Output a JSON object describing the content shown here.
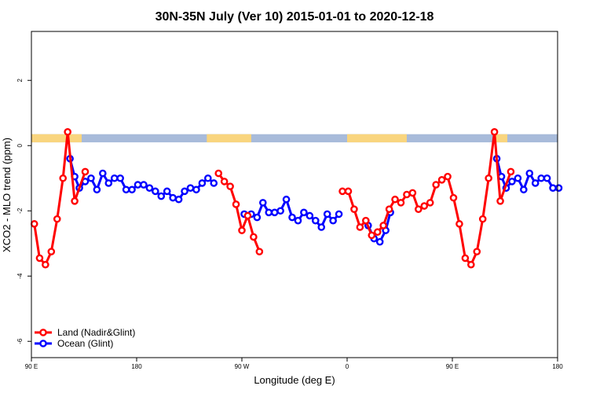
{
  "chart_data": {
    "type": "line",
    "title": "30N-35N July (Ver 10)   2015-01-01 to 2020-12-18",
    "xlabel": "Longitude (deg E)",
    "ylabel": "XCO2 - MLO trend (ppm)",
    "x_domain": [
      90,
      540
    ],
    "ylim": [
      -6.5,
      3.5
    ],
    "x_ticks": [
      {
        "value": 90,
        "label": "90 E"
      },
      {
        "value": 180,
        "label": "180"
      },
      {
        "value": 270,
        "label": "90 W"
      },
      {
        "value": 360,
        "label": "0"
      },
      {
        "value": 450,
        "label": "90 E"
      },
      {
        "value": 540,
        "label": "180"
      }
    ],
    "y_ticks": [
      {
        "value": -6,
        "label": "-6"
      },
      {
        "value": -4,
        "label": "-4"
      },
      {
        "value": -2,
        "label": "-2"
      },
      {
        "value": 0,
        "label": "0"
      },
      {
        "value": 2,
        "label": "2"
      }
    ],
    "land_ocean_band": {
      "y_range": [
        0.1,
        0.35
      ],
      "land_color": "#F9D57E",
      "ocean_color": "#A8BBDA",
      "land_segments": [
        [
          90,
          133
        ],
        [
          240,
          278
        ],
        [
          360,
          411
        ],
        [
          485,
          497
        ]
      ]
    },
    "legend": {
      "position": "bottom-left",
      "entries": [
        {
          "label": "Land (Nadir&Glint)",
          "color": "#FF0000"
        },
        {
          "label": "Ocean (Glint)",
          "color": "#0000FF"
        }
      ]
    },
    "series": [
      {
        "name": "Land (Nadir&Glint)",
        "color": "#FF0000",
        "segments": [
          [
            [
              92.5,
              -2.4
            ],
            [
              97,
              -3.45
            ],
            [
              102,
              -3.65
            ],
            [
              107,
              -3.25
            ],
            [
              112,
              -2.25
            ],
            [
              117,
              -1.0
            ],
            [
              121,
              0.42
            ],
            [
              127,
              -1.7
            ],
            [
              136,
              -0.8
            ]
          ],
          [
            [
              250,
              -0.85
            ],
            [
              255,
              -1.1
            ],
            [
              260,
              -1.25
            ],
            [
              265,
              -1.8
            ],
            [
              270,
              -2.6
            ],
            [
              275,
              -2.15
            ],
            [
              280,
              -2.8
            ],
            [
              285,
              -3.25
            ]
          ],
          [
            [
              356,
              -1.4
            ],
            [
              361,
              -1.4
            ],
            [
              366,
              -1.95
            ],
            [
              371,
              -2.5
            ],
            [
              376,
              -2.3
            ],
            [
              381,
              -2.75
            ],
            [
              386,
              -2.65
            ],
            [
              391,
              -2.45
            ],
            [
              396,
              -1.95
            ],
            [
              401,
              -1.65
            ],
            [
              406,
              -1.75
            ],
            [
              411,
              -1.5
            ],
            [
              416,
              -1.45
            ],
            [
              421,
              -1.95
            ],
            [
              426,
              -1.85
            ],
            [
              431,
              -1.75
            ],
            [
              436,
              -1.2
            ],
            [
              441,
              -1.05
            ],
            [
              446,
              -0.95
            ],
            [
              451,
              -1.6
            ],
            [
              456,
              -2.4
            ],
            [
              461,
              -3.45
            ],
            [
              466,
              -3.65
            ],
            [
              471,
              -3.25
            ],
            [
              476,
              -2.25
            ],
            [
              481,
              -1.0
            ],
            [
              486,
              0.42
            ],
            [
              491,
              -1.7
            ],
            [
              500,
              -0.8
            ]
          ]
        ]
      },
      {
        "name": "Ocean (Glint)",
        "color": "#0000FF",
        "segments": [
          [
            [
              123,
              -0.4
            ],
            [
              127,
              -0.95
            ],
            [
              131,
              -1.3
            ],
            [
              136,
              -1.1
            ],
            [
              141,
              -1.0
            ],
            [
              146,
              -1.35
            ],
            [
              151,
              -0.85
            ],
            [
              156,
              -1.15
            ],
            [
              161,
              -1.0
            ],
            [
              166,
              -1.0
            ],
            [
              171,
              -1.35
            ],
            [
              176,
              -1.35
            ],
            [
              181,
              -1.2
            ],
            [
              186,
              -1.2
            ],
            [
              191,
              -1.3
            ],
            [
              196,
              -1.4
            ],
            [
              201,
              -1.55
            ],
            [
              206,
              -1.4
            ],
            [
              211,
              -1.6
            ],
            [
              216,
              -1.65
            ],
            [
              221,
              -1.4
            ],
            [
              226,
              -1.3
            ],
            [
              231,
              -1.35
            ],
            [
              236,
              -1.15
            ],
            [
              241,
              -1.0
            ],
            [
              246,
              -1.15
            ]
          ],
          [
            [
              272,
              -2.1
            ],
            [
              278,
              -2.1
            ],
            [
              283,
              -2.2
            ],
            [
              288,
              -1.75
            ],
            [
              293,
              -2.05
            ],
            [
              298,
              -2.05
            ],
            [
              303,
              -2.0
            ],
            [
              308,
              -1.65
            ],
            [
              313,
              -2.2
            ],
            [
              318,
              -2.3
            ],
            [
              323,
              -2.05
            ],
            [
              328,
              -2.15
            ],
            [
              333,
              -2.3
            ],
            [
              338,
              -2.5
            ],
            [
              343,
              -2.1
            ],
            [
              348,
              -2.3
            ],
            [
              353,
              -2.1
            ]
          ],
          [
            [
              378,
              -2.45
            ],
            [
              383,
              -2.85
            ],
            [
              388,
              -2.95
            ],
            [
              393,
              -2.6
            ],
            [
              397,
              -2.05
            ]
          ],
          [
            [
              488,
              -0.4
            ],
            [
              492,
              -0.95
            ],
            [
              496,
              -1.3
            ],
            [
              501,
              -1.1
            ],
            [
              506,
              -1.0
            ],
            [
              511,
              -1.35
            ],
            [
              516,
              -0.85
            ],
            [
              521,
              -1.15
            ],
            [
              526,
              -1.0
            ],
            [
              531,
              -1.0
            ],
            [
              536,
              -1.3
            ],
            [
              541,
              -1.3
            ]
          ]
        ]
      }
    ]
  }
}
